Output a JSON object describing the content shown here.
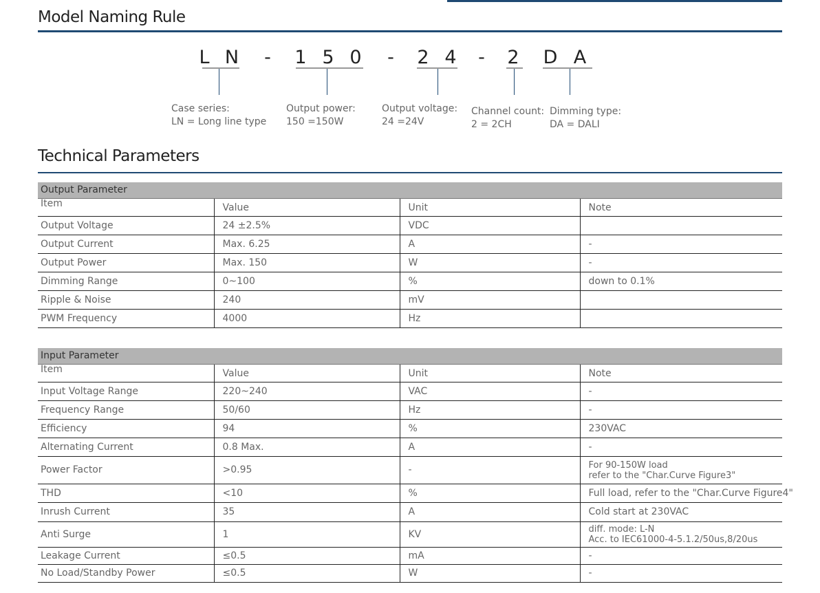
{
  "naming": {
    "title": "Model Naming Rule",
    "code_chars": [
      "L",
      "N",
      "-",
      "1",
      "5",
      "0",
      "-",
      "2",
      "4",
      "-",
      "2",
      "D",
      "A"
    ],
    "labels": [
      {
        "line1": "Case series:",
        "line2": "LN = Long line type"
      },
      {
        "line1": "Output power:",
        "line2": "150 =150W"
      },
      {
        "line1": "Output voltage:",
        "line2": "24 =24V"
      },
      {
        "line1": "Channel count:",
        "line2": "2 = 2CH"
      },
      {
        "line1": "Dimming type:",
        "line2": "DA = DALI"
      }
    ]
  },
  "technical": {
    "title": "Technical Parameters",
    "output": {
      "section": "Output Parameter",
      "headers": [
        "Item",
        "Value",
        "Unit",
        "Note"
      ],
      "rows": [
        [
          "Output Voltage",
          "24 ±2.5%",
          "VDC",
          ""
        ],
        [
          "Output Current",
          "Max. 6.25",
          "A",
          "-"
        ],
        [
          "Output Power",
          "Max. 150",
          "W",
          "-"
        ],
        [
          "Dimming Range",
          "0~100",
          "%",
          "down to 0.1%"
        ],
        [
          "Ripple & Noise",
          "240",
          "mV",
          ""
        ],
        [
          "PWM Frequency",
          "4000",
          "Hz",
          ""
        ]
      ]
    },
    "input": {
      "section": "Input Parameter",
      "headers": [
        "Item",
        "Value",
        "Unit",
        "Note"
      ],
      "rows": [
        [
          "Input Voltage Range",
          "220~240",
          "VAC",
          "-"
        ],
        [
          "Frequency Range",
          "50/60",
          "Hz",
          "-"
        ],
        [
          "Efficiency",
          "94",
          "%",
          "230VAC"
        ],
        [
          "Alternating Current",
          "0.8 Max.",
          "A",
          "-"
        ],
        [
          "Power Factor",
          ">0.95",
          "-",
          "For 90-150W load\nrefer to the \"Char.Curve Figure3\""
        ],
        [
          "THD",
          "<10",
          "%",
          "Full load, refer to the \"Char.Curve Figure4\""
        ],
        [
          "Inrush Current",
          "35",
          "A",
          "Cold start at 230VAC"
        ],
        [
          "Anti Surge",
          "1",
          "KV",
          "diff. mode: L-N\nAcc. to IEC61000-4-5.1.2/50us,8/20us"
        ],
        [
          "Leakage Current",
          "≤0.5",
          "mA",
          "-"
        ],
        [
          "No Load/Standby Power",
          "≤0.5",
          "W",
          "-"
        ]
      ]
    }
  }
}
